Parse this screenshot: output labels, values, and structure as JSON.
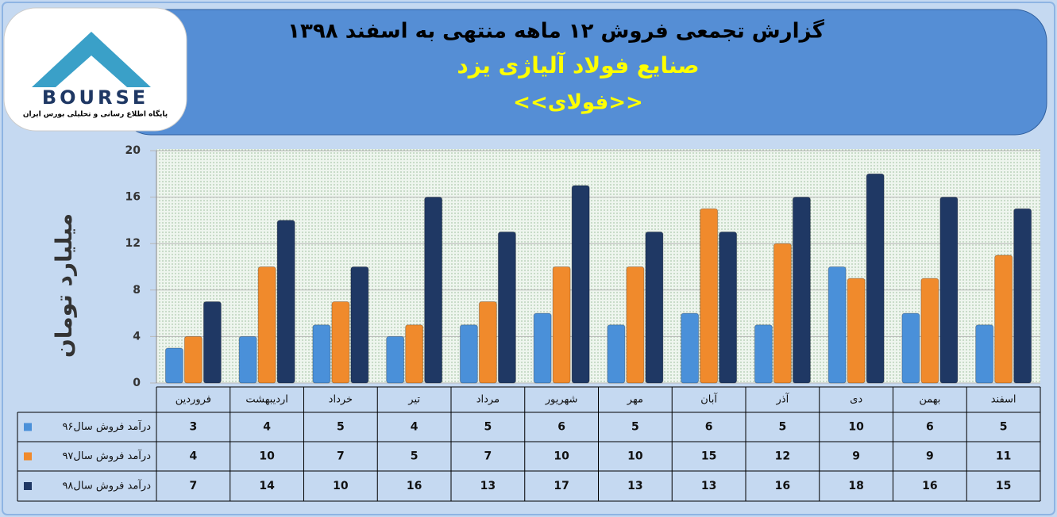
{
  "logo": {
    "name": "BOURSE",
    "tagline": "پایگاه اطلاع رسانی و تحلیلی بورس ایران"
  },
  "chart_data": {
    "type": "bar",
    "title": "گزارش تجمعی فروش  ۱۲ ماهه منتهی به اسفند ۱۳۹۸",
    "subtitle": "صنایع فولاد آلیاژی یزد",
    "symbol": "<<فولای>>",
    "y_label": "میلیارد تومان",
    "categories": [
      "فروردین",
      "اردیبهشت",
      "خرداد",
      "تیر",
      "مرداد",
      "شهریور",
      "مهر",
      "آبان",
      "آذر",
      "دی",
      "بهمن",
      "اسفند"
    ],
    "series": [
      {
        "name": "درآمد فروش سال۹۶",
        "color": "#4a90d9",
        "values": [
          3,
          4,
          5,
          4,
          5,
          6,
          5,
          6,
          5,
          10,
          6,
          5
        ]
      },
      {
        "name": "درآمد فروش سال۹۷",
        "color": "#f08a2c",
        "values": [
          4,
          10,
          7,
          5,
          7,
          10,
          10,
          15,
          12,
          9,
          9,
          11
        ]
      },
      {
        "name": "درآمد فروش سال۹۸",
        "color": "#1f3864",
        "values": [
          7,
          14,
          10,
          16,
          13,
          17,
          13,
          13,
          16,
          18,
          16,
          15
        ]
      }
    ],
    "ylim": [
      0,
      20
    ],
    "yticks": [
      0,
      4,
      8,
      12,
      16,
      20
    ],
    "grid": true
  }
}
